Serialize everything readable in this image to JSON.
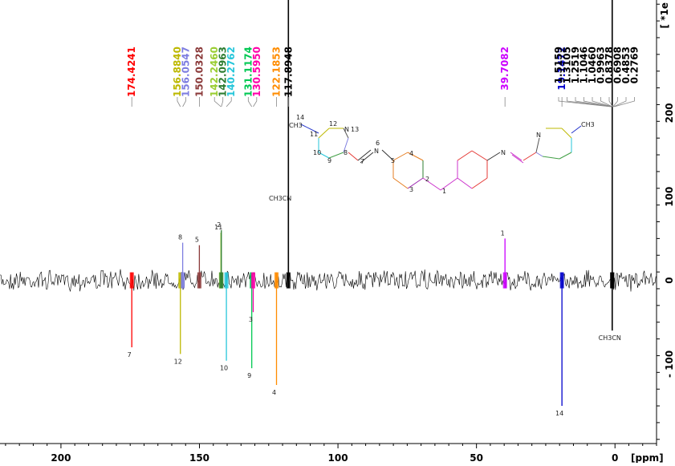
{
  "axes": {
    "x_unit_label": "[ppm]",
    "y_unit_label": "[ *1e",
    "x_ticks": [
      {
        "value": 200,
        "label": "200"
      },
      {
        "value": 150,
        "label": "150"
      },
      {
        "value": 100,
        "label": "100"
      },
      {
        "value": 50,
        "label": "50"
      },
      {
        "value": 0,
        "label": "0"
      }
    ],
    "y_ticks": [
      {
        "value": 200,
        "label": "200"
      },
      {
        "value": 100,
        "label": "100"
      },
      {
        "value": 0,
        "label": "0"
      },
      {
        "value": -100,
        "label": "- 100"
      }
    ]
  },
  "molecule": {
    "atoms": [
      {
        "id": "1",
        "color": "#cc33cc"
      },
      {
        "id": "2",
        "color": "#2e7d32"
      },
      {
        "id": "3",
        "color": "#9c27b0"
      },
      {
        "id": "4",
        "color": "#e67e22"
      },
      {
        "id": "5",
        "color": "#e67e22"
      },
      {
        "id": "6",
        "color": "#333333"
      },
      {
        "id": "7",
        "color": "#e53935"
      },
      {
        "id": "8",
        "color": "#7e7ee0"
      },
      {
        "id": "9",
        "color": "#43a047"
      },
      {
        "id": "10",
        "color": "#26c6da"
      },
      {
        "id": "11",
        "color": "#bdb800"
      },
      {
        "id": "12",
        "color": "#bdb800"
      },
      {
        "id": "13",
        "color": "#333333"
      },
      {
        "id": "14",
        "color": "#2233cc"
      }
    ],
    "n_label": "N",
    "ch3_label": "CH3",
    "solvent_label": "CH3CN"
  },
  "chart_data": {
    "type": "line",
    "title": "",
    "xlabel": "[ppm]",
    "ylabel": "[ *1e",
    "xlim": [
      222,
      -15
    ],
    "ylim": [
      -195,
      335
    ],
    "x_reversed": true,
    "grid": false,
    "peak_labels": [
      {
        "text": "174.4241",
        "ppm": 174.4241,
        "color": "#ff0000"
      },
      {
        "text": "156.8840",
        "ppm": 156.884,
        "color": "#bdb800"
      },
      {
        "text": "156.0547",
        "ppm": 156.0547,
        "color": "#7e7ee0"
      },
      {
        "text": "150.0328",
        "ppm": 150.0328,
        "color": "#8b3a3a"
      },
      {
        "text": "142.2460",
        "ppm": 142.246,
        "color": "#9acd32"
      },
      {
        "text": "142.0963",
        "ppm": 142.0963,
        "color": "#2e7d32"
      },
      {
        "text": "140.2762",
        "ppm": 140.2762,
        "color": "#26c6da"
      },
      {
        "text": "131.1174",
        "ppm": 131.1174,
        "color": "#00c853"
      },
      {
        "text": "130.5950",
        "ppm": 130.595,
        "color": "#ff00aa"
      },
      {
        "text": "122.1853",
        "ppm": 122.1853,
        "color": "#ff8c00"
      },
      {
        "text": "117.8948",
        "ppm": 117.8948,
        "color": "#000000"
      },
      {
        "text": "39.7082",
        "ppm": 39.7082,
        "color": "#cc00ff"
      },
      {
        "text": "19.1472",
        "ppm": 19.1472,
        "color": "#0000cc"
      },
      {
        "text": "1.5159",
        "ppm": 1.5159,
        "color": "#000000"
      },
      {
        "text": "1.3105",
        "ppm": 1.3105,
        "color": "#000000"
      },
      {
        "text": "1.2519",
        "ppm": 1.2519,
        "color": "#000000"
      },
      {
        "text": "1.1046",
        "ppm": 1.1046,
        "color": "#000000"
      },
      {
        "text": "1.0460",
        "ppm": 1.046,
        "color": "#000000"
      },
      {
        "text": "0.9963",
        "ppm": 0.9963,
        "color": "#000000"
      },
      {
        "text": "0.8378",
        "ppm": 0.8378,
        "color": "#000000"
      },
      {
        "text": "0.6908",
        "ppm": 0.6908,
        "color": "#000000"
      },
      {
        "text": "0.4853",
        "ppm": 0.4853,
        "color": "#000000"
      },
      {
        "text": "0.2769",
        "ppm": 0.2769,
        "color": "#000000"
      }
    ],
    "peaks": [
      {
        "ppm": 174.4241,
        "intensity": -80,
        "color": "#ff0000",
        "label": "7"
      },
      {
        "ppm": 156.884,
        "intensity": -88,
        "color": "#bdb800",
        "label": "12"
      },
      {
        "ppm": 156.0547,
        "intensity": 45,
        "color": "#7e7ee0",
        "label": "8"
      },
      {
        "ppm": 150.0328,
        "intensity": 42,
        "color": "#8b3a3a",
        "label": "5"
      },
      {
        "ppm": 142.246,
        "intensity": 57,
        "color": "#9acd32",
        "label": "11"
      },
      {
        "ppm": 142.0963,
        "intensity": 60,
        "color": "#2e7d32",
        "label": "2"
      },
      {
        "ppm": 140.2762,
        "intensity": -96,
        "color": "#26c6da",
        "label": "10"
      },
      {
        "ppm": 131.1174,
        "intensity": -105,
        "color": "#00c853",
        "label": "9"
      },
      {
        "ppm": 130.595,
        "intensity": -38,
        "color": "#ff00aa",
        "label": "3"
      },
      {
        "ppm": 122.1853,
        "intensity": -125,
        "color": "#ff8c00",
        "label": "4"
      },
      {
        "ppm": 117.8948,
        "intensity": 335,
        "color": "#000000",
        "label": "CH3CN"
      },
      {
        "ppm": 39.7082,
        "intensity": 50,
        "color": "#cc00ff",
        "label": "1"
      },
      {
        "ppm": 19.1472,
        "intensity": -150,
        "color": "#0000cc",
        "label": "14"
      },
      {
        "ppm": 1.0,
        "intensity": 335,
        "color": "#000000",
        "label": ""
      },
      {
        "ppm": 1.0,
        "intensity": -60,
        "color": "#000000",
        "label": "CH3CN"
      }
    ]
  }
}
